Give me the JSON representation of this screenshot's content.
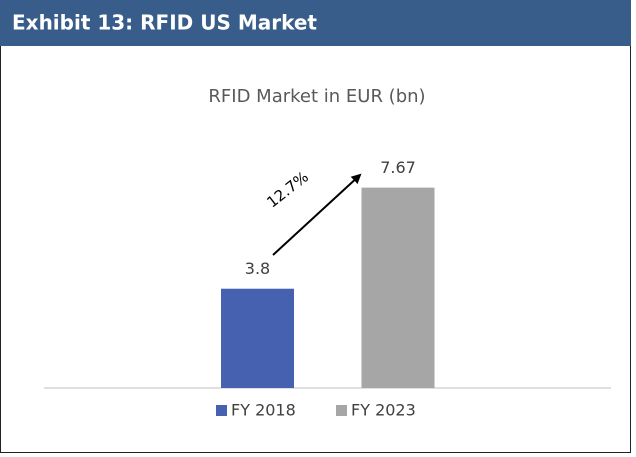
{
  "header": {
    "title": "Exhibit 13: RFID US Market"
  },
  "chart_data": {
    "type": "bar",
    "title": "RFID Market in EUR (bn)",
    "categories": [
      "FY 2018",
      "FY 2023"
    ],
    "values": [
      3.8,
      7.67
    ],
    "colors": [
      "#4561b0",
      "#a6a6a6"
    ],
    "ylim": [
      0,
      8
    ],
    "annotations": [
      "12.7%"
    ],
    "legend": "bottom"
  }
}
